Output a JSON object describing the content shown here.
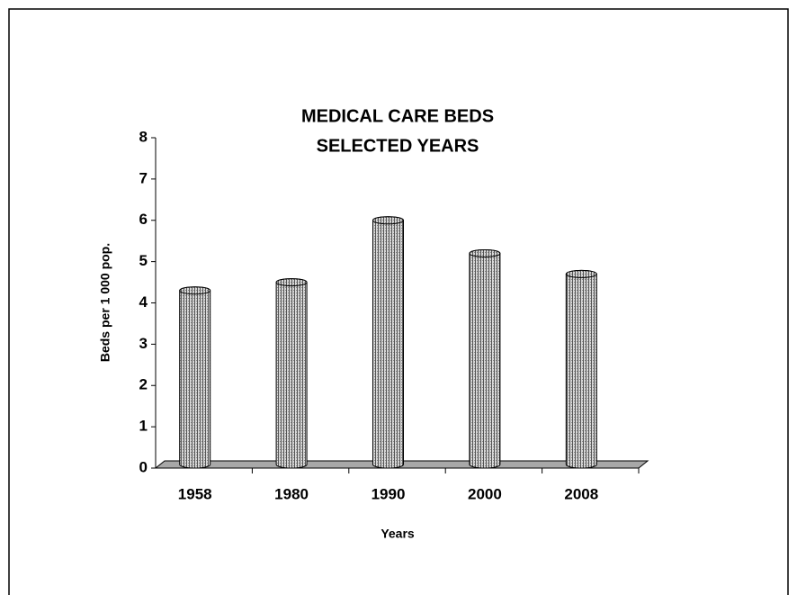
{
  "chart_data": {
    "type": "bar3d",
    "title": [
      "MEDICAL CARE BEDS",
      "SELECTED YEARS"
    ],
    "x_label": "Years",
    "y_label": "Beds per 1 000 pop.",
    "categories": [
      "1958",
      "1980",
      "1990",
      "2000",
      "2008"
    ],
    "values": [
      4.3,
      4.5,
      6.0,
      5.2,
      4.7
    ],
    "color": "#a0a0a0",
    "ylim": [
      0,
      8
    ],
    "yticks": [
      0,
      1,
      2,
      3,
      4,
      5,
      6,
      7,
      8
    ],
    "grid": false
  }
}
